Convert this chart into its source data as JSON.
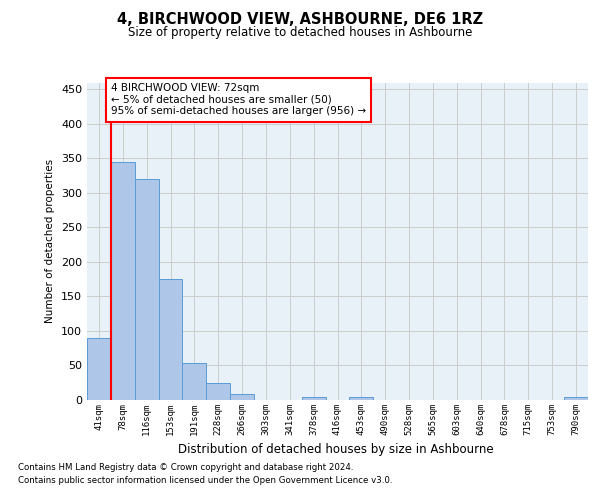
{
  "title": "4, BIRCHWOOD VIEW, ASHBOURNE, DE6 1RZ",
  "subtitle": "Size of property relative to detached houses in Ashbourne",
  "xlabel": "Distribution of detached houses by size in Ashbourne",
  "ylabel": "Number of detached properties",
  "categories": [
    "41sqm",
    "78sqm",
    "116sqm",
    "153sqm",
    "191sqm",
    "228sqm",
    "266sqm",
    "303sqm",
    "341sqm",
    "378sqm",
    "416sqm",
    "453sqm",
    "490sqm",
    "528sqm",
    "565sqm",
    "603sqm",
    "640sqm",
    "678sqm",
    "715sqm",
    "753sqm",
    "790sqm"
  ],
  "values": [
    90,
    345,
    320,
    175,
    53,
    25,
    8,
    0,
    0,
    5,
    0,
    5,
    0,
    0,
    0,
    0,
    0,
    0,
    0,
    0,
    5
  ],
  "bar_color": "#aec6e8",
  "bar_edge_color": "#5b9bd5",
  "grid_color": "#cccccc",
  "background_color": "#e8f0f8",
  "annotation_line1": "4 BIRCHWOOD VIEW: 72sqm",
  "annotation_line2": "← 5% of detached houses are smaller (50)",
  "annotation_line3": "95% of semi-detached houses are larger (956) →",
  "annotation_box_edge_color": "red",
  "vline_color": "red",
  "ylim": [
    0,
    460
  ],
  "yticks": [
    0,
    50,
    100,
    150,
    200,
    250,
    300,
    350,
    400,
    450
  ],
  "footer_line1": "Contains HM Land Registry data © Crown copyright and database right 2024.",
  "footer_line2": "Contains public sector information licensed under the Open Government Licence v3.0."
}
